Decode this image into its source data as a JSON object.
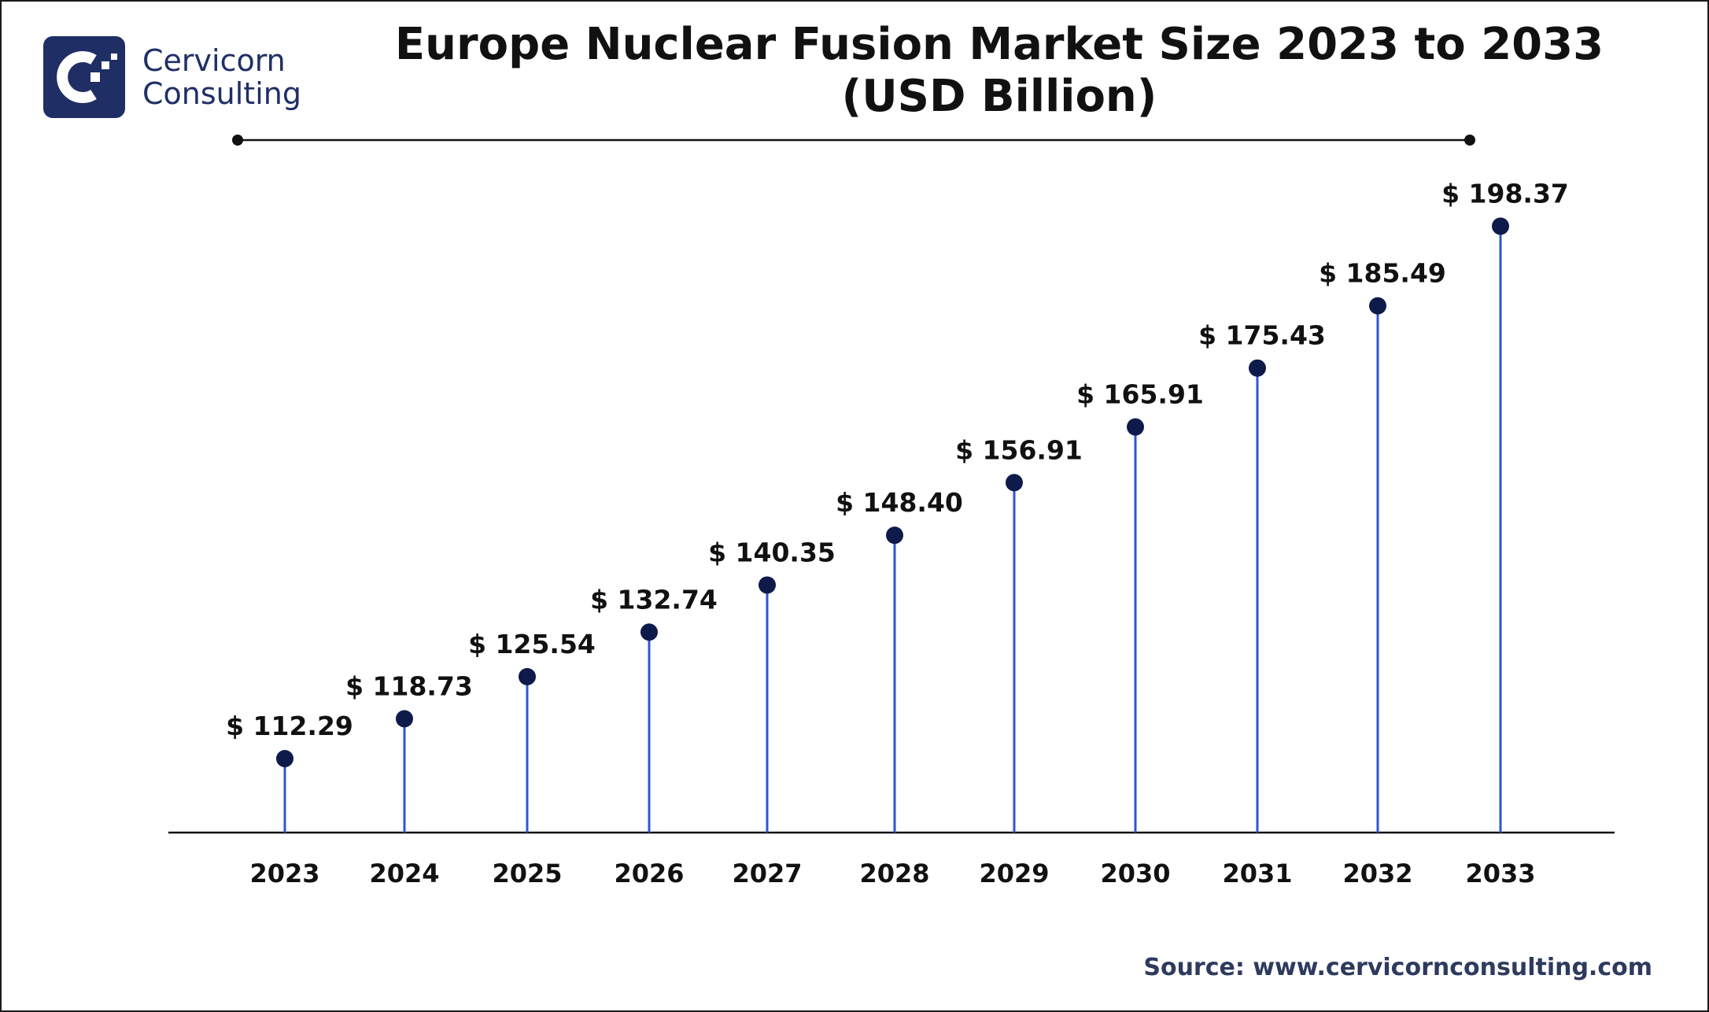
{
  "brand": {
    "name_line1": "Cervicorn",
    "name_line2": "Consulting",
    "logo_icon": "cervicorn-logo-icon",
    "color": "#1f2f66"
  },
  "colors": {
    "stem": "#2f55d4",
    "dot": "#0e1a4a",
    "text": "#111111",
    "axis": "#111111"
  },
  "chart_data": {
    "type": "scatter",
    "title_line1": "Europe Nuclear Fusion Market Size 2023 to 2033",
    "title_line2": "(USD Billion)",
    "xlabel": "",
    "ylabel": "",
    "categories": [
      "2023",
      "2024",
      "2025",
      "2026",
      "2027",
      "2028",
      "2029",
      "2030",
      "2031",
      "2032",
      "2033"
    ],
    "values": [
      112.29,
      118.73,
      125.54,
      132.74,
      140.35,
      148.4,
      156.91,
      165.91,
      175.43,
      185.49,
      198.37
    ],
    "data_labels": [
      "$ 112.29",
      "$ 118.73",
      "$ 125.54",
      "$ 132.74",
      "$ 140.35",
      "$ 148.40",
      "$ 156.91",
      "$ 165.91",
      "$ 175.43",
      "$ 185.49",
      "$ 198.37"
    ],
    "legend": "none",
    "grid": false
  },
  "source": "Source: www.cervicornconsulting.com"
}
